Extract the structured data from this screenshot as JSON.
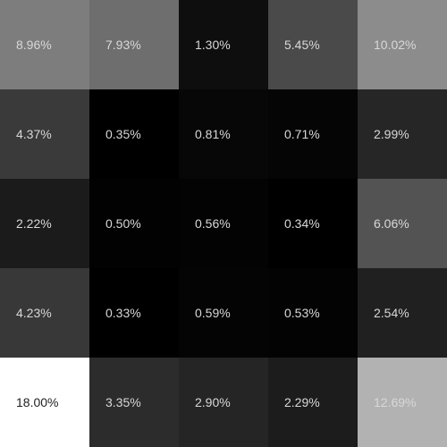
{
  "chart_data": {
    "type": "heatmap",
    "rows": 5,
    "cols": 5,
    "value_range": [
      0.33,
      18.0
    ],
    "colormap": "grayscale",
    "low_color": "#000000",
    "high_color": "#ffffff",
    "values": [
      [
        8.96,
        7.93,
        1.3,
        5.45,
        10.02
      ],
      [
        4.37,
        0.35,
        0.81,
        0.71,
        2.99
      ],
      [
        2.22,
        0.5,
        0.56,
        0.34,
        6.06
      ],
      [
        4.23,
        0.33,
        0.59,
        0.53,
        2.54
      ],
      [
        18.0,
        3.35,
        2.9,
        2.29,
        12.69
      ]
    ],
    "labels": [
      [
        "8.96%",
        "7.93%",
        "1.30%",
        "5.45%",
        "10.02%"
      ],
      [
        "4.37%",
        "0.35%",
        "0.81%",
        "0.71%",
        "2.99%"
      ],
      [
        "2.22%",
        "0.50%",
        "0.56%",
        "0.34%",
        "6.06%"
      ],
      [
        "4.23%",
        "0.33%",
        "0.59%",
        "0.53%",
        "2.54%"
      ],
      [
        "18.00%",
        "3.35%",
        "2.90%",
        "2.29%",
        "12.69%"
      ]
    ],
    "title": "",
    "xlabel": "",
    "ylabel": "",
    "grid": false,
    "legend": "none"
  }
}
